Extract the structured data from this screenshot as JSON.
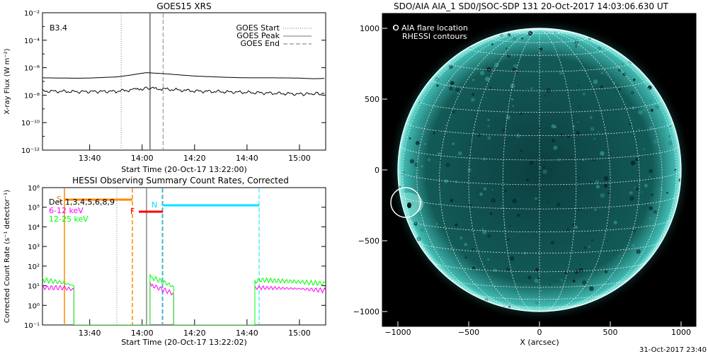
{
  "chart_data": [
    {
      "type": "line",
      "title": "GOES15 XRS",
      "xlabel": "Start Time (20-Oct-17 13:22:00)",
      "ylabel": "X-ray Flux (W m⁻²)",
      "y_scale": "log",
      "ylim_exponents": [
        -12,
        -2
      ],
      "y_tick_labels": [
        "10⁻¹²",
        "10⁻¹⁰",
        "10⁻⁸",
        "10⁻⁶",
        "10⁻⁴",
        "10⁻²"
      ],
      "x_tick_labels": [
        "13:40",
        "14:00",
        "14:20",
        "14:40",
        "15:00"
      ],
      "annotation": "B3.4",
      "legend": [
        "GOES Start",
        "GOES Peak",
        "GOES End"
      ],
      "legend_position": "top-right",
      "markers": {
        "start": "13:52",
        "peak": "14:03",
        "end": "14:08"
      },
      "series": [
        {
          "x": [
            "13:22",
            "13:35",
            "13:50",
            "13:56",
            "14:00",
            "14:03",
            "14:08",
            "14:20",
            "14:40",
            "15:00",
            "15:10"
          ],
          "log10_y": [
            -6.75,
            -6.75,
            -6.7,
            -6.55,
            -6.4,
            -6.38,
            -6.45,
            -6.62,
            -6.72,
            -6.78,
            -6.78
          ]
        },
        {
          "x": [
            "13:22",
            "13:35",
            "13:50",
            "13:56",
            "14:00",
            "14:03",
            "14:08",
            "14:20",
            "14:40",
            "15:00",
            "15:10"
          ],
          "log10_y": [
            -7.7,
            -7.75,
            -7.72,
            -7.62,
            -7.52,
            -7.5,
            -7.55,
            -7.7,
            -7.8,
            -7.92,
            -7.88
          ]
        }
      ]
    },
    {
      "type": "line",
      "title": "HESSI Observing Summary Count Rates, Corrected",
      "xlabel": "Start Time (20-Oct-17 13:22:02)",
      "ylabel": "Corrected Count Rate (s⁻¹ detector⁻¹)",
      "y_scale": "log",
      "ylim_exponents": [
        -1,
        6
      ],
      "y_tick_labels": [
        "10⁻¹",
        "10⁰",
        "10¹",
        "10²",
        "10³",
        "10⁴",
        "10⁵",
        "10⁶"
      ],
      "x_tick_labels": [
        "13:40",
        "14:00",
        "14:20",
        "14:40",
        "15:00"
      ],
      "legend": [
        "Det 1,3,4,5,6,8,9",
        "6-12 keV",
        "12-25 keV"
      ],
      "legend_position": "top-left",
      "bar_labels": [
        "S",
        "F",
        "N"
      ],
      "colors": {
        "s_bar": "#ff8800",
        "f_bar": "#ff0000",
        "n_bar": "#00e5ff",
        "low": "#ff00ff",
        "mid": "#00ff00"
      },
      "series": [
        {
          "name": "6-12 keV",
          "x": [
            "13:22",
            "13:30",
            "13:34",
            "13:34",
            "14:03",
            "14:03",
            "14:04",
            "14:08",
            "14:12",
            "14:12",
            "14:43",
            "14:43",
            "14:45",
            "15:00",
            "15:10"
          ],
          "log10_y": [
            0.9,
            0.9,
            0.8,
            -1.0,
            -1.0,
            1.1,
            1.0,
            0.8,
            0.6,
            -1.0,
            -1.0,
            0.9,
            0.9,
            0.85,
            0.75
          ]
        },
        {
          "name": "12-25 keV",
          "x": [
            "13:22",
            "13:30",
            "13:34",
            "13:34",
            "14:03",
            "14:03",
            "14:04",
            "14:08",
            "14:12",
            "14:12",
            "14:43",
            "14:43",
            "14:45",
            "15:00",
            "15:10"
          ],
          "log10_y": [
            1.3,
            1.15,
            1.0,
            -1.0,
            -1.0,
            1.5,
            1.4,
            1.2,
            0.95,
            -1.0,
            -1.0,
            1.2,
            1.3,
            1.2,
            1.1
          ]
        }
      ]
    }
  ],
  "aia": {
    "title": "SDO/AIA AIA_1 SD0/JSOC-SDP 131 20-Oct-2017 14:03:06.630 UT",
    "legend_line1": "O AIA flare location",
    "legend_line2": "RHESSI contours",
    "xlabel": "X (arcsec)",
    "x_tick_labels": [
      "−1000",
      "−500",
      "0",
      "500",
      "1000"
    ],
    "y_tick_labels": [
      "1000",
      "500",
      "0",
      "−500",
      "−1000"
    ],
    "footer": "31-Oct-2017 23:40",
    "disk_color": "#0e5a58",
    "limb_color": "#40e0d8"
  }
}
